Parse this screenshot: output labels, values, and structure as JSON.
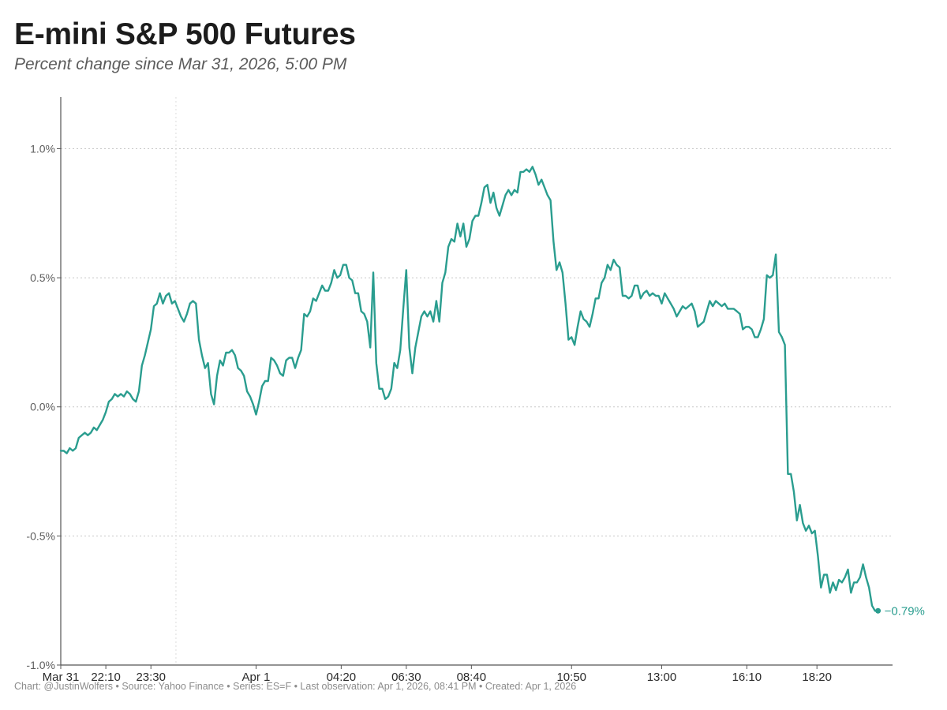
{
  "title": "E-mini S&P 500 Futures",
  "subtitle": "Percent change since Mar 31, 2026, 5:00 PM",
  "footer": "Chart: @JustinWolfers • Source: Yahoo Finance • Series: ES=F • Last observation: Apr 1, 2026, 08:41 PM • Created: Apr 1, 2026",
  "colors": {
    "line": "#2a9d8f",
    "grid": "#c8c8c8",
    "axis": "#555555",
    "vline": "#dcdcdc"
  },
  "chart_data": {
    "type": "line",
    "title": "E-mini S&P 500 Futures",
    "subtitle": "Percent change since Mar 31, 2026, 5:00 PM",
    "xlabel": "",
    "ylabel": "",
    "x_unit": "minutes since Mar 31, 2026, 5:00 PM",
    "xlim": [
      0,
      1661
    ],
    "ylim": [
      -1.0,
      1.2
    ],
    "y_ticks": [
      -1.0,
      -0.5,
      0.0,
      0.5,
      1.0
    ],
    "y_tick_labels": [
      "-1.0%",
      "-0.5%",
      "0.0%",
      "0.5%",
      "1.0%"
    ],
    "y_grid": true,
    "x_ticks": [
      0,
      90,
      180,
      390,
      560,
      690,
      820,
      1020,
      1200,
      1370,
      1510
    ],
    "x_tick_labels": [
      "Mar 31",
      "22:10",
      "23:30",
      "Apr 1",
      "04:20",
      "06:30",
      "08:40",
      "10:50",
      "13:00",
      "16:10",
      "18:20"
    ],
    "reference_vline_x": 230,
    "end_label": "−0.79%",
    "series": [
      {
        "name": "ES=F",
        "values": [
          [
            0,
            -0.17
          ],
          [
            6,
            -0.17
          ],
          [
            12,
            -0.18
          ],
          [
            18,
            -0.16
          ],
          [
            24,
            -0.17
          ],
          [
            30,
            -0.16
          ],
          [
            36,
            -0.12
          ],
          [
            42,
            -0.11
          ],
          [
            48,
            -0.1
          ],
          [
            54,
            -0.11
          ],
          [
            60,
            -0.1
          ],
          [
            66,
            -0.08
          ],
          [
            72,
            -0.09
          ],
          [
            78,
            -0.07
          ],
          [
            84,
            -0.05
          ],
          [
            90,
            -0.02
          ],
          [
            96,
            0.02
          ],
          [
            102,
            0.03
          ],
          [
            108,
            0.05
          ],
          [
            114,
            0.04
          ],
          [
            120,
            0.05
          ],
          [
            126,
            0.04
          ],
          [
            132,
            0.06
          ],
          [
            138,
            0.05
          ],
          [
            144,
            0.03
          ],
          [
            150,
            0.02
          ],
          [
            156,
            0.06
          ],
          [
            162,
            0.16
          ],
          [
            168,
            0.2
          ],
          [
            174,
            0.25
          ],
          [
            180,
            0.3
          ],
          [
            186,
            0.39
          ],
          [
            192,
            0.4
          ],
          [
            198,
            0.44
          ],
          [
            204,
            0.4
          ],
          [
            210,
            0.43
          ],
          [
            216,
            0.44
          ],
          [
            222,
            0.4
          ],
          [
            228,
            0.41
          ],
          [
            234,
            0.38
          ],
          [
            240,
            0.35
          ],
          [
            246,
            0.33
          ],
          [
            252,
            0.36
          ],
          [
            258,
            0.4
          ],
          [
            264,
            0.41
          ],
          [
            270,
            0.4
          ],
          [
            276,
            0.26
          ],
          [
            282,
            0.2
          ],
          [
            288,
            0.15
          ],
          [
            294,
            0.17
          ],
          [
            300,
            0.05
          ],
          [
            306,
            0.01
          ],
          [
            312,
            0.12
          ],
          [
            318,
            0.18
          ],
          [
            324,
            0.16
          ],
          [
            330,
            0.21
          ],
          [
            336,
            0.21
          ],
          [
            342,
            0.22
          ],
          [
            348,
            0.2
          ],
          [
            354,
            0.15
          ],
          [
            360,
            0.14
          ],
          [
            366,
            0.12
          ],
          [
            372,
            0.06
          ],
          [
            378,
            0.04
          ],
          [
            384,
            0.01
          ],
          [
            390,
            -0.03
          ],
          [
            396,
            0.02
          ],
          [
            402,
            0.08
          ],
          [
            408,
            0.1
          ],
          [
            414,
            0.1
          ],
          [
            420,
            0.19
          ],
          [
            426,
            0.18
          ],
          [
            432,
            0.16
          ],
          [
            438,
            0.13
          ],
          [
            444,
            0.12
          ],
          [
            450,
            0.18
          ],
          [
            456,
            0.19
          ],
          [
            462,
            0.19
          ],
          [
            468,
            0.15
          ],
          [
            474,
            0.19
          ],
          [
            480,
            0.22
          ],
          [
            486,
            0.36
          ],
          [
            492,
            0.35
          ],
          [
            498,
            0.37
          ],
          [
            504,
            0.42
          ],
          [
            510,
            0.41
          ],
          [
            516,
            0.44
          ],
          [
            522,
            0.47
          ],
          [
            528,
            0.45
          ],
          [
            534,
            0.45
          ],
          [
            540,
            0.48
          ],
          [
            546,
            0.53
          ],
          [
            552,
            0.5
          ],
          [
            558,
            0.51
          ],
          [
            564,
            0.55
          ],
          [
            570,
            0.55
          ],
          [
            576,
            0.5
          ],
          [
            582,
            0.49
          ],
          [
            588,
            0.44
          ],
          [
            594,
            0.44
          ],
          [
            600,
            0.37
          ],
          [
            606,
            0.36
          ],
          [
            612,
            0.33
          ],
          [
            618,
            0.23
          ],
          [
            624,
            0.52
          ],
          [
            630,
            0.17
          ],
          [
            636,
            0.07
          ],
          [
            642,
            0.07
          ],
          [
            648,
            0.03
          ],
          [
            654,
            0.04
          ],
          [
            660,
            0.07
          ],
          [
            666,
            0.17
          ],
          [
            672,
            0.15
          ],
          [
            678,
            0.22
          ],
          [
            684,
            0.38
          ],
          [
            690,
            0.53
          ],
          [
            696,
            0.23
          ],
          [
            702,
            0.13
          ],
          [
            708,
            0.23
          ],
          [
            714,
            0.29
          ],
          [
            720,
            0.35
          ],
          [
            726,
            0.37
          ],
          [
            732,
            0.35
          ],
          [
            738,
            0.37
          ],
          [
            744,
            0.33
          ],
          [
            750,
            0.41
          ],
          [
            756,
            0.33
          ],
          [
            762,
            0.48
          ],
          [
            768,
            0.52
          ],
          [
            774,
            0.62
          ],
          [
            780,
            0.65
          ],
          [
            786,
            0.64
          ],
          [
            792,
            0.71
          ],
          [
            798,
            0.66
          ],
          [
            804,
            0.71
          ],
          [
            810,
            0.62
          ],
          [
            816,
            0.65
          ],
          [
            822,
            0.72
          ],
          [
            828,
            0.74
          ],
          [
            834,
            0.74
          ],
          [
            840,
            0.79
          ],
          [
            846,
            0.85
          ],
          [
            852,
            0.86
          ],
          [
            858,
            0.79
          ],
          [
            864,
            0.83
          ],
          [
            870,
            0.77
          ],
          [
            876,
            0.74
          ],
          [
            882,
            0.78
          ],
          [
            888,
            0.82
          ],
          [
            894,
            0.84
          ],
          [
            900,
            0.82
          ],
          [
            906,
            0.84
          ],
          [
            912,
            0.83
          ],
          [
            918,
            0.91
          ],
          [
            924,
            0.91
          ],
          [
            930,
            0.92
          ],
          [
            936,
            0.91
          ],
          [
            942,
            0.93
          ],
          [
            948,
            0.9
          ],
          [
            954,
            0.86
          ],
          [
            960,
            0.88
          ],
          [
            966,
            0.85
          ],
          [
            972,
            0.82
          ],
          [
            978,
            0.8
          ],
          [
            984,
            0.64
          ],
          [
            990,
            0.53
          ],
          [
            996,
            0.56
          ],
          [
            1002,
            0.52
          ],
          [
            1008,
            0.4
          ],
          [
            1014,
            0.26
          ],
          [
            1020,
            0.27
          ],
          [
            1026,
            0.24
          ],
          [
            1032,
            0.31
          ],
          [
            1038,
            0.37
          ],
          [
            1044,
            0.34
          ],
          [
            1050,
            0.33
          ],
          [
            1056,
            0.31
          ],
          [
            1062,
            0.36
          ],
          [
            1068,
            0.42
          ],
          [
            1074,
            0.42
          ],
          [
            1080,
            0.48
          ],
          [
            1086,
            0.5
          ],
          [
            1092,
            0.55
          ],
          [
            1098,
            0.53
          ],
          [
            1104,
            0.57
          ],
          [
            1110,
            0.55
          ],
          [
            1116,
            0.54
          ],
          [
            1122,
            0.43
          ],
          [
            1128,
            0.43
          ],
          [
            1134,
            0.42
          ],
          [
            1140,
            0.43
          ],
          [
            1146,
            0.47
          ],
          [
            1152,
            0.47
          ],
          [
            1158,
            0.42
          ],
          [
            1164,
            0.44
          ],
          [
            1170,
            0.45
          ],
          [
            1176,
            0.43
          ],
          [
            1182,
            0.44
          ],
          [
            1188,
            0.43
          ],
          [
            1194,
            0.43
          ],
          [
            1200,
            0.4
          ],
          [
            1206,
            0.44
          ],
          [
            1212,
            0.42
          ],
          [
            1218,
            0.4
          ],
          [
            1224,
            0.38
          ],
          [
            1230,
            0.35
          ],
          [
            1236,
            0.37
          ],
          [
            1242,
            0.39
          ],
          [
            1248,
            0.38
          ],
          [
            1254,
            0.39
          ],
          [
            1260,
            0.4
          ],
          [
            1266,
            0.37
          ],
          [
            1272,
            0.31
          ],
          [
            1278,
            0.32
          ],
          [
            1284,
            0.33
          ],
          [
            1290,
            0.37
          ],
          [
            1296,
            0.41
          ],
          [
            1302,
            0.39
          ],
          [
            1308,
            0.41
          ],
          [
            1314,
            0.4
          ],
          [
            1320,
            0.39
          ],
          [
            1326,
            0.4
          ],
          [
            1332,
            0.38
          ],
          [
            1338,
            0.38
          ],
          [
            1344,
            0.38
          ],
          [
            1350,
            0.37
          ],
          [
            1356,
            0.36
          ],
          [
            1362,
            0.3
          ],
          [
            1368,
            0.31
          ],
          [
            1374,
            0.31
          ],
          [
            1380,
            0.3
          ],
          [
            1386,
            0.27
          ],
          [
            1392,
            0.27
          ],
          [
            1398,
            0.3
          ],
          [
            1404,
            0.34
          ],
          [
            1410,
            0.51
          ],
          [
            1416,
            0.5
          ],
          [
            1422,
            0.51
          ],
          [
            1428,
            0.59
          ],
          [
            1434,
            0.29
          ],
          [
            1440,
            0.27
          ],
          [
            1446,
            0.24
          ],
          [
            1452,
            -0.26
          ],
          [
            1458,
            -0.26
          ],
          [
            1464,
            -0.33
          ],
          [
            1470,
            -0.44
          ],
          [
            1476,
            -0.38
          ],
          [
            1482,
            -0.45
          ],
          [
            1488,
            -0.48
          ],
          [
            1494,
            -0.46
          ],
          [
            1500,
            -0.49
          ],
          [
            1506,
            -0.48
          ],
          [
            1512,
            -0.58
          ],
          [
            1518,
            -0.7
          ],
          [
            1524,
            -0.65
          ],
          [
            1530,
            -0.65
          ],
          [
            1536,
            -0.72
          ],
          [
            1542,
            -0.68
          ],
          [
            1548,
            -0.71
          ],
          [
            1554,
            -0.67
          ],
          [
            1560,
            -0.68
          ],
          [
            1566,
            -0.66
          ],
          [
            1572,
            -0.63
          ],
          [
            1578,
            -0.72
          ],
          [
            1584,
            -0.68
          ],
          [
            1590,
            -0.68
          ],
          [
            1596,
            -0.66
          ],
          [
            1602,
            -0.61
          ],
          [
            1608,
            -0.66
          ],
          [
            1614,
            -0.7
          ],
          [
            1620,
            -0.77
          ],
          [
            1626,
            -0.79
          ],
          [
            1632,
            -0.79
          ]
        ]
      }
    ]
  }
}
